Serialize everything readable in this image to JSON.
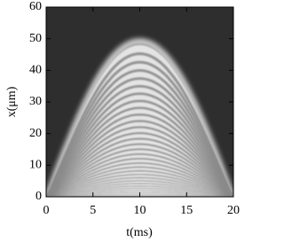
{
  "chart_data": {
    "type": "density",
    "xlabel": "t(ms)",
    "ylabel": "x(μm)",
    "xlim": [
      0,
      20
    ],
    "ylim": [
      0,
      60
    ],
    "xticks": [
      0,
      5,
      10,
      15,
      20
    ],
    "yticks": [
      0,
      10,
      20,
      30,
      40,
      50,
      60
    ]
  }
}
